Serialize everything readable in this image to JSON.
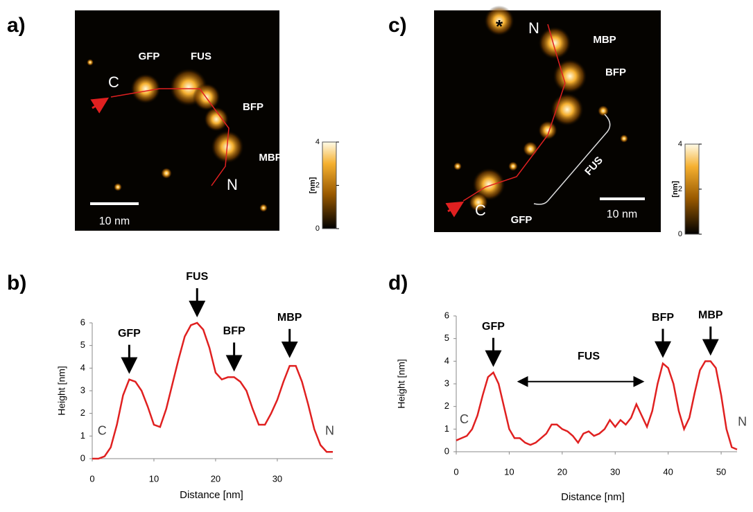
{
  "panels": [
    {
      "label": "a)",
      "texts": [
        "GFP",
        "FUS",
        "BFP",
        "MBP",
        "C",
        "N"
      ],
      "scale_bar": "10 nm",
      "colorbar": {
        "label": "[nm]",
        "ticks": [
          0,
          2,
          4
        ]
      }
    },
    {
      "label": "c)",
      "texts": [
        "*",
        "N",
        "MBP",
        "BFP",
        "FUS",
        "C",
        "GFP"
      ],
      "scale_bar": "10 nm",
      "colorbar": {
        "label": "[nm]",
        "ticks": [
          0,
          2,
          4
        ]
      }
    }
  ],
  "chart_data": [
    {
      "type": "line",
      "panel_label": "b)",
      "xlabel": "Distance [nm]",
      "ylabel": "Height [nm]",
      "color": "#e02020",
      "x": [
        0,
        1,
        2,
        3,
        4,
        5,
        6,
        7,
        8,
        9,
        10,
        11,
        12,
        13,
        14,
        15,
        16,
        17,
        18,
        19,
        20,
        21,
        22,
        23,
        24,
        25,
        26,
        27,
        28,
        29,
        30,
        31,
        32,
        33,
        34,
        35,
        36,
        37,
        38,
        39
      ],
      "values": [
        0,
        0,
        0.1,
        0.5,
        1.5,
        2.8,
        3.5,
        3.4,
        3.0,
        2.3,
        1.5,
        1.4,
        2.2,
        3.3,
        4.4,
        5.4,
        5.9,
        6.0,
        5.7,
        4.9,
        3.8,
        3.5,
        3.6,
        3.6,
        3.4,
        3.0,
        2.2,
        1.5,
        1.5,
        2.0,
        2.6,
        3.4,
        4.1,
        4.1,
        3.4,
        2.4,
        1.3,
        0.6,
        0.3,
        0.3
      ],
      "xlim": [
        0,
        39
      ],
      "ylim": [
        0,
        6
      ],
      "xticks": [
        0,
        10,
        20,
        30
      ],
      "yticks": [
        0,
        1,
        2,
        3,
        4,
        5,
        6
      ],
      "annotations": [
        "GFP",
        "FUS",
        "BFP",
        "MBP",
        "C",
        "N"
      ]
    },
    {
      "type": "line",
      "panel_label": "d)",
      "xlabel": "Distance [nm]",
      "ylabel": "Height [nm]",
      "color": "#e02020",
      "x": [
        0,
        1,
        2,
        3,
        4,
        5,
        6,
        7,
        8,
        9,
        10,
        11,
        12,
        13,
        14,
        15,
        16,
        17,
        18,
        19,
        20,
        21,
        22,
        23,
        24,
        25,
        26,
        27,
        28,
        29,
        30,
        31,
        32,
        33,
        34,
        35,
        36,
        37,
        38,
        39,
        40,
        41,
        42,
        43,
        44,
        45,
        46,
        47,
        48,
        49,
        50,
        51,
        52,
        53
      ],
      "values": [
        0.5,
        0.6,
        0.7,
        1.0,
        1.6,
        2.5,
        3.3,
        3.5,
        3.0,
        2.0,
        1.0,
        0.6,
        0.6,
        0.4,
        0.3,
        0.4,
        0.6,
        0.8,
        1.2,
        1.2,
        1.0,
        0.9,
        0.7,
        0.4,
        0.8,
        0.9,
        0.7,
        0.8,
        1.0,
        1.4,
        1.1,
        1.4,
        1.2,
        1.5,
        2.1,
        1.6,
        1.1,
        1.8,
        3.0,
        3.9,
        3.7,
        3.0,
        1.8,
        1.0,
        1.5,
        2.6,
        3.6,
        4.0,
        4.0,
        3.7,
        2.5,
        1.0,
        0.2,
        0.1
      ],
      "xlim": [
        0,
        53
      ],
      "ylim": [
        0,
        6
      ],
      "xticks": [
        0,
        10,
        20,
        30,
        40,
        50
      ],
      "yticks": [
        0,
        1,
        2,
        3,
        4,
        5,
        6
      ],
      "annotations": [
        "GFP",
        "BFP",
        "MBP",
        "FUS",
        "C",
        "N"
      ]
    }
  ]
}
